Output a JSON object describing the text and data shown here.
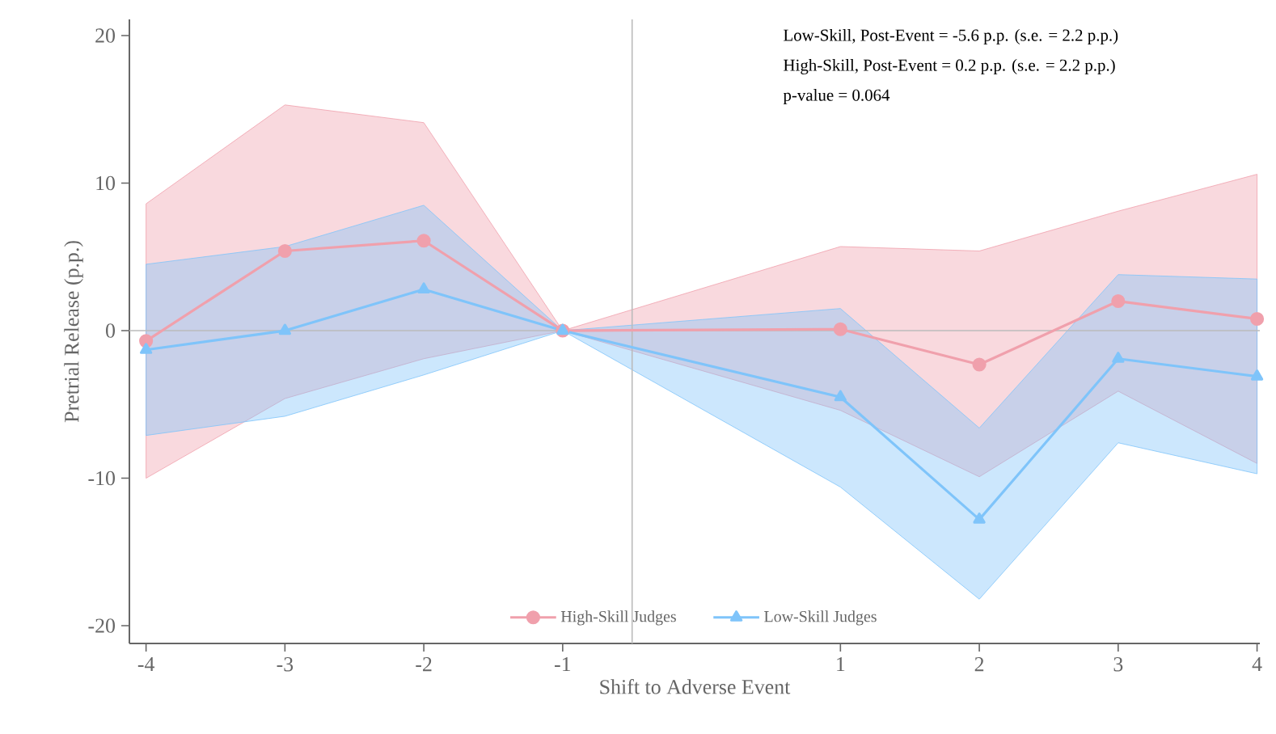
{
  "chart_data": {
    "type": "line",
    "xlabel": "Shift to Adverse Event",
    "ylabel": "Pretrial Release (p.p.)",
    "x": [
      -4,
      -3,
      -2,
      -1,
      1,
      2,
      3,
      4
    ],
    "xlim": [
      -4.12,
      4.02
    ],
    "xticks": [
      -4,
      -3,
      -2,
      -1,
      1,
      2,
      3,
      4
    ],
    "ylim": [
      -21.2,
      21.1
    ],
    "yticks": [
      -20,
      -10,
      0,
      10,
      20
    ],
    "grid": false,
    "legend": "bottom",
    "line_style": "solid",
    "series": [
      {
        "name": "High-Skill Judges",
        "color": "#f0a0ac",
        "marker": "circle",
        "values": [
          -0.7,
          5.4,
          6.1,
          0,
          0.1,
          -2.3,
          2.0,
          0.8
        ],
        "lower": [
          -10.0,
          -4.6,
          -1.9,
          0,
          -5.4,
          -9.9,
          -4.1,
          -9.0
        ],
        "upper": [
          8.6,
          15.3,
          14.1,
          0,
          5.7,
          5.4,
          8.1,
          10.6
        ]
      },
      {
        "name": "Low-Skill Judges",
        "color": "#7fc4fa",
        "marker": "triangle",
        "values": [
          -1.3,
          0,
          2.8,
          0,
          -4.5,
          -12.8,
          -1.9,
          -3.1
        ],
        "lower": [
          -7.1,
          -5.8,
          -3.0,
          0,
          -10.6,
          -18.2,
          -7.6,
          -9.7
        ],
        "upper": [
          4.5,
          5.7,
          8.5,
          0,
          1.5,
          -6.6,
          3.8,
          3.5
        ]
      }
    ],
    "ref_lines": [
      {
        "axis": "y",
        "value": 0,
        "color": "#bbbbbb"
      },
      {
        "axis": "x",
        "value": -0.5,
        "color": "#bbbbbb"
      }
    ],
    "annotations": [
      "Low-Skill, Post-Event = -5.6 p.p. (s.e. = 2.2 p.p.)",
      "High-Skill, Post-Event = 0.2 p.p. (s.e. = 2.2 p.p.)",
      "p-value = 0.064"
    ]
  }
}
